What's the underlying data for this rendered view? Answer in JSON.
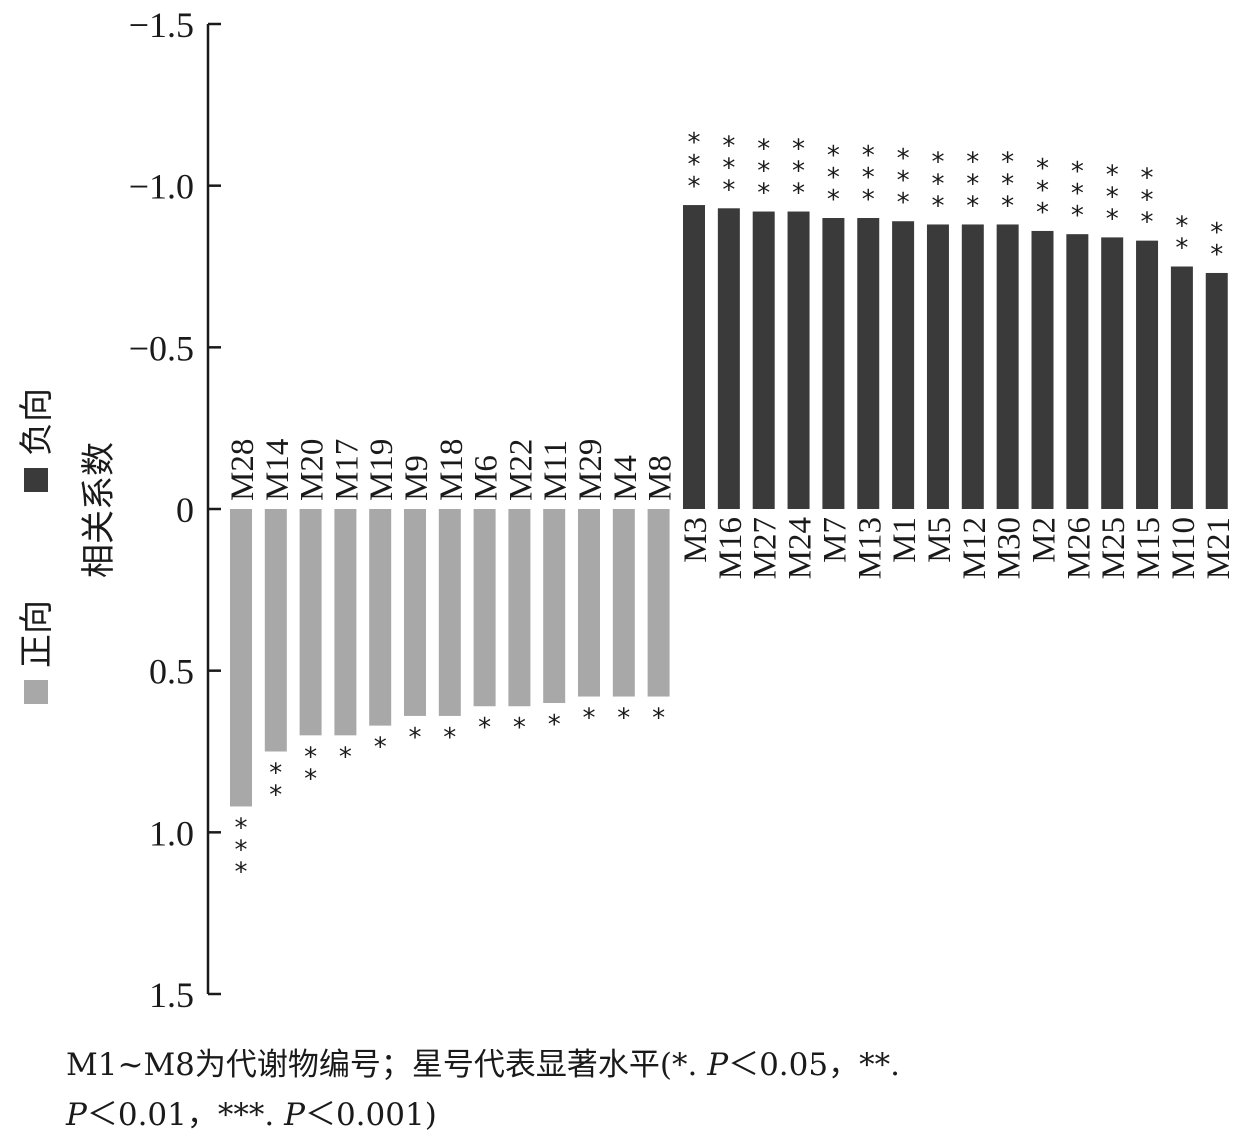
{
  "chart_data": {
    "type": "bar",
    "orientation": "vertical",
    "ylabel": "相关系数",
    "ylim": [
      1.5,
      -1.5
    ],
    "yticks": [
      {
        "value": -1.5,
        "label": "−1.5"
      },
      {
        "value": -1.0,
        "label": "−1.0"
      },
      {
        "value": -0.5,
        "label": "−0.5"
      },
      {
        "value": 0,
        "label": "0"
      },
      {
        "value": 0.5,
        "label": "0.5"
      },
      {
        "value": 1.0,
        "label": "1.0"
      },
      {
        "value": 1.5,
        "label": "1.5"
      }
    ],
    "legend": {
      "placement": "left",
      "entries": [
        {
          "label": "正向",
          "color": "#a8a8a8"
        },
        {
          "label": "负向",
          "color": "#3a3a3a"
        }
      ]
    },
    "series": [
      {
        "name": "正向",
        "color": "#a8a8a8",
        "categories": [
          "M28",
          "M14",
          "M20",
          "M17",
          "M19",
          "M9",
          "M18",
          "M6",
          "M22",
          "M11",
          "M29",
          "M4",
          "M8"
        ],
        "values": [
          0.92,
          0.75,
          0.7,
          0.7,
          0.67,
          0.64,
          0.64,
          0.61,
          0.61,
          0.6,
          0.58,
          0.58,
          0.58
        ],
        "significance": [
          "***",
          "**",
          "**",
          "*",
          "*",
          "*",
          "*",
          "*",
          "*",
          "*",
          "*",
          "*",
          "*"
        ]
      },
      {
        "name": "负向",
        "color": "#3a3a3a",
        "categories": [
          "M3",
          "M16",
          "M27",
          "M24",
          "M7",
          "M13",
          "M1",
          "M5",
          "M12",
          "M30",
          "M2",
          "M26",
          "M25",
          "M15",
          "M10",
          "M21"
        ],
        "values": [
          -0.94,
          -0.93,
          -0.92,
          -0.92,
          -0.9,
          -0.9,
          -0.89,
          -0.88,
          -0.88,
          -0.88,
          -0.86,
          -0.85,
          -0.84,
          -0.83,
          -0.75,
          -0.73
        ],
        "significance": [
          "***",
          "***",
          "***",
          "***",
          "***",
          "***",
          "***",
          "***",
          "***",
          "***",
          "***",
          "***",
          "***",
          "***",
          "**",
          "**"
        ]
      }
    ]
  },
  "footnote": {
    "line1_prefix": "M1~M8为代谢物编号；星号代表显著水平(*. ",
    "line1_p": "P",
    "line1_suffix": "＜0.05，**.",
    "line2_p1": "P",
    "line2_mid": "＜0.01，***. ",
    "line2_p2": "P",
    "line2_suffix": "＜0.001)"
  }
}
